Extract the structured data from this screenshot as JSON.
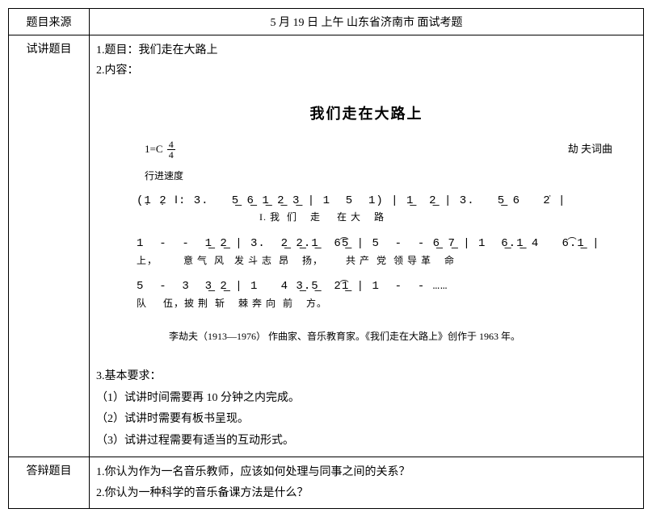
{
  "header": {
    "source_label": "题目来源",
    "source_value": "5 月 19 日 上午 山东省济南市 面试考题"
  },
  "lecture": {
    "label": "试讲题目",
    "line1": "1.题目：我们走在大路上",
    "line2": "2.内容：",
    "score": {
      "title": "我们走在大路上",
      "key": "1=C",
      "time_top": "4",
      "time_bot": "4",
      "tempo": "行进速度",
      "credit": "劫  夫词曲",
      "notation_line1": "(1̣ 2̣ ‖: 3.   5̲ 6̲ 1̲ 2̲ 3̲ | 1  5  1) | 1̲  2̲ | 3.   5̲ 6   2̇ |",
      "lyric_line1": "                                      I. 我  们    走     在 大    路",
      "notation_line2": "1  -  -  1̲ 2̲ | 3.  2̲ 2̲.1̲  6͡5̲ | 5  -  - 6̲ 7̲ | 1  6̲.1̲ 4   6͡.1̲ |",
      "lyric_line2": "上，        意 气  风   发 斗 志  昂    扬，       共 产  党  领 导 革    命",
      "notation_line3": "5  -  3  3̲ 2̲ | 1   4 3̲.5̲  2͡1̲ | 1  -  - ……",
      "lyric_line3": "队     伍，披 荆  斩    棘 奔 向  前    方。",
      "footer": "李劫夫（1913—1976）  作曲家、音乐教育家。《我们走在大路上》创作于 1963 年。"
    },
    "req_title": "3.基本要求：",
    "req1": "（1）试讲时间需要再 10 分钟之内完成。",
    "req2": "（2）试讲时需要有板书呈现。",
    "req3": "（3）试讲过程需要有适当的互动形式。"
  },
  "defense": {
    "label": "答辩题目",
    "q1": "1.你认为作为一名音乐教师，应该如何处理与同事之间的关系？",
    "q2": "2.你认为一种科学的音乐备课方法是什么？"
  }
}
